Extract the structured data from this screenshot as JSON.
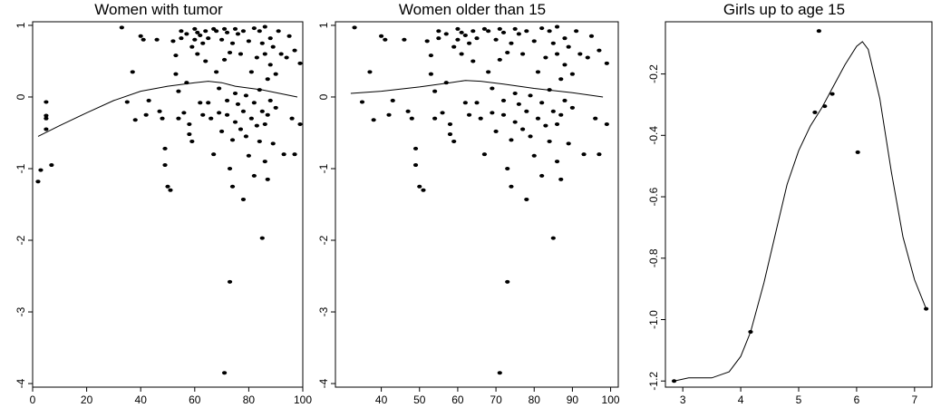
{
  "chart_data": [
    {
      "type": "scatter",
      "title": "Women with tumor",
      "xlabel": "",
      "ylabel": "",
      "xlim": [
        0,
        100
      ],
      "ylim": [
        -4,
        1
      ],
      "x_ticks": [
        0,
        20,
        40,
        60,
        80,
        100
      ],
      "y_ticks": [
        1,
        0,
        -1,
        -2,
        -3,
        -4
      ],
      "grid": false,
      "points": [
        [
          2,
          -1.18
        ],
        [
          3,
          -1.02
        ],
        [
          5,
          -0.07
        ],
        [
          5,
          -0.26
        ],
        [
          5,
          -0.3
        ],
        [
          5,
          -0.45
        ],
        [
          7,
          -0.95
        ],
        [
          33,
          0.97
        ],
        [
          35,
          -0.07
        ],
        [
          37,
          0.35
        ],
        [
          38,
          -0.32
        ],
        [
          40,
          0.85
        ],
        [
          41,
          0.8
        ],
        [
          42,
          -0.25
        ],
        [
          43,
          -0.05
        ],
        [
          46,
          0.8
        ],
        [
          47,
          -0.2
        ],
        [
          48,
          -0.3
        ],
        [
          49,
          -0.95
        ],
        [
          49,
          -0.72
        ],
        [
          50,
          -1.25
        ],
        [
          51,
          -1.3
        ],
        [
          52,
          0.78
        ],
        [
          53,
          0.58
        ],
        [
          53,
          0.32
        ],
        [
          54,
          0.08
        ],
        [
          54,
          -0.3
        ],
        [
          55,
          0.82
        ],
        [
          55,
          0.92
        ],
        [
          56,
          -0.22
        ],
        [
          57,
          0.88
        ],
        [
          57,
          0.2
        ],
        [
          58,
          -0.38
        ],
        [
          58,
          -0.52
        ],
        [
          59,
          0.7
        ],
        [
          59,
          -0.62
        ],
        [
          60,
          0.95
        ],
        [
          60,
          0.8
        ],
        [
          61,
          0.9
        ],
        [
          61,
          0.6
        ],
        [
          62,
          0.86
        ],
        [
          62,
          -0.08
        ],
        [
          63,
          0.75
        ],
        [
          63,
          -0.25
        ],
        [
          64,
          0.92
        ],
        [
          64,
          0.5
        ],
        [
          65,
          0.82
        ],
        [
          65,
          -0.08
        ],
        [
          66,
          -0.3
        ],
        [
          67,
          0.95
        ],
        [
          67,
          -0.8
        ],
        [
          68,
          0.92
        ],
        [
          68,
          0.35
        ],
        [
          69,
          0.12
        ],
        [
          69,
          -0.22
        ],
        [
          70,
          0.8
        ],
        [
          70,
          -0.48
        ],
        [
          71,
          0.52
        ],
        [
          71,
          -3.85
        ],
        [
          71,
          0.95
        ],
        [
          72,
          0.9
        ],
        [
          72,
          -0.05
        ],
        [
          72,
          -0.25
        ],
        [
          73,
          0.62
        ],
        [
          73,
          -2.58
        ],
        [
          73,
          -1.0
        ],
        [
          74,
          0.75
        ],
        [
          74,
          -0.6
        ],
        [
          74,
          -1.25
        ],
        [
          75,
          0.95
        ],
        [
          75,
          0.05
        ],
        [
          75,
          -0.35
        ],
        [
          76,
          0.88
        ],
        [
          76,
          -0.1
        ],
        [
          77,
          0.6
        ],
        [
          77,
          -0.45
        ],
        [
          78,
          0.92
        ],
        [
          78,
          -0.2
        ],
        [
          78,
          -1.43
        ],
        [
          79,
          0.02
        ],
        [
          79,
          -0.55
        ],
        [
          80,
          0.78
        ],
        [
          80,
          -0.82
        ],
        [
          81,
          0.35
        ],
        [
          81,
          -0.3
        ],
        [
          82,
          0.96
        ],
        [
          82,
          -0.08
        ],
        [
          82,
          -1.1
        ],
        [
          83,
          0.55
        ],
        [
          83,
          -0.4
        ],
        [
          84,
          0.92
        ],
        [
          84,
          0.1
        ],
        [
          84,
          -0.62
        ],
        [
          85,
          0.75
        ],
        [
          85,
          -0.2
        ],
        [
          85,
          -1.97
        ],
        [
          86,
          0.98
        ],
        [
          86,
          0.6
        ],
        [
          86,
          -0.38
        ],
        [
          86,
          -0.9
        ],
        [
          87,
          0.25
        ],
        [
          87,
          -0.25
        ],
        [
          87,
          -1.15
        ],
        [
          88,
          0.82
        ],
        [
          88,
          0.45
        ],
        [
          88,
          -0.05
        ],
        [
          89,
          0.7
        ],
        [
          89,
          -0.65
        ],
        [
          90,
          0.32
        ],
        [
          90,
          -0.15
        ],
        [
          91,
          0.92
        ],
        [
          92,
          0.6
        ],
        [
          93,
          -0.8
        ],
        [
          94,
          0.55
        ],
        [
          95,
          0.85
        ],
        [
          96,
          -0.3
        ],
        [
          97,
          0.65
        ],
        [
          97,
          -0.8
        ],
        [
          99,
          0.47
        ],
        [
          99,
          -0.38
        ]
      ],
      "curve": [
        [
          2,
          -0.55
        ],
        [
          10,
          -0.4
        ],
        [
          20,
          -0.22
        ],
        [
          30,
          -0.05
        ],
        [
          40,
          0.08
        ],
        [
          50,
          0.15
        ],
        [
          60,
          0.2
        ],
        [
          65,
          0.22
        ],
        [
          70,
          0.2
        ],
        [
          75,
          0.15
        ],
        [
          85,
          0.1
        ],
        [
          98,
          0.0
        ]
      ]
    },
    {
      "type": "scatter",
      "title": "Women older than 15",
      "xlabel": "",
      "ylabel": "",
      "xlim": [
        30,
        100
      ],
      "ylim": [
        -4,
        1
      ],
      "x_ticks": [
        40,
        50,
        60,
        70,
        80,
        90,
        100
      ],
      "y_ticks": [
        1,
        0,
        -1,
        -2,
        -3,
        -4
      ],
      "grid": false,
      "points": [
        [
          33,
          0.97
        ],
        [
          35,
          -0.07
        ],
        [
          37,
          0.35
        ],
        [
          38,
          -0.32
        ],
        [
          40,
          0.85
        ],
        [
          41,
          0.8
        ],
        [
          42,
          -0.25
        ],
        [
          43,
          -0.05
        ],
        [
          46,
          0.8
        ],
        [
          47,
          -0.2
        ],
        [
          48,
          -0.3
        ],
        [
          49,
          -0.95
        ],
        [
          49,
          -0.72
        ],
        [
          50,
          -1.25
        ],
        [
          51,
          -1.3
        ],
        [
          52,
          0.78
        ],
        [
          53,
          0.58
        ],
        [
          53,
          0.32
        ],
        [
          54,
          0.08
        ],
        [
          54,
          -0.3
        ],
        [
          55,
          0.82
        ],
        [
          55,
          0.92
        ],
        [
          56,
          -0.22
        ],
        [
          57,
          0.88
        ],
        [
          57,
          0.2
        ],
        [
          58,
          -0.38
        ],
        [
          58,
          -0.52
        ],
        [
          59,
          0.7
        ],
        [
          59,
          -0.62
        ],
        [
          60,
          0.95
        ],
        [
          60,
          0.8
        ],
        [
          61,
          0.9
        ],
        [
          61,
          0.6
        ],
        [
          62,
          0.86
        ],
        [
          62,
          -0.08
        ],
        [
          63,
          0.75
        ],
        [
          63,
          -0.25
        ],
        [
          64,
          0.92
        ],
        [
          64,
          0.5
        ],
        [
          65,
          0.82
        ],
        [
          65,
          -0.08
        ],
        [
          66,
          -0.3
        ],
        [
          67,
          0.95
        ],
        [
          67,
          -0.8
        ],
        [
          68,
          0.92
        ],
        [
          68,
          0.35
        ],
        [
          69,
          0.12
        ],
        [
          69,
          -0.22
        ],
        [
          70,
          0.8
        ],
        [
          70,
          -0.48
        ],
        [
          71,
          0.52
        ],
        [
          71,
          -3.85
        ],
        [
          71,
          0.95
        ],
        [
          72,
          0.9
        ],
        [
          72,
          -0.05
        ],
        [
          72,
          -0.25
        ],
        [
          73,
          0.62
        ],
        [
          73,
          -2.58
        ],
        [
          73,
          -1.0
        ],
        [
          74,
          0.75
        ],
        [
          74,
          -0.6
        ],
        [
          74,
          -1.25
        ],
        [
          75,
          0.95
        ],
        [
          75,
          0.05
        ],
        [
          75,
          -0.35
        ],
        [
          76,
          0.88
        ],
        [
          76,
          -0.1
        ],
        [
          77,
          0.6
        ],
        [
          77,
          -0.45
        ],
        [
          78,
          0.92
        ],
        [
          78,
          -0.2
        ],
        [
          78,
          -1.43
        ],
        [
          79,
          0.02
        ],
        [
          79,
          -0.55
        ],
        [
          80,
          0.78
        ],
        [
          80,
          -0.82
        ],
        [
          81,
          0.35
        ],
        [
          81,
          -0.3
        ],
        [
          82,
          0.96
        ],
        [
          82,
          -0.08
        ],
        [
          82,
          -1.1
        ],
        [
          83,
          0.55
        ],
        [
          83,
          -0.4
        ],
        [
          84,
          0.92
        ],
        [
          84,
          0.1
        ],
        [
          84,
          -0.62
        ],
        [
          85,
          0.75
        ],
        [
          85,
          -0.2
        ],
        [
          85,
          -1.97
        ],
        [
          86,
          0.98
        ],
        [
          86,
          0.6
        ],
        [
          86,
          -0.38
        ],
        [
          86,
          -0.9
        ],
        [
          87,
          0.25
        ],
        [
          87,
          -0.25
        ],
        [
          87,
          -1.15
        ],
        [
          88,
          0.82
        ],
        [
          88,
          0.45
        ],
        [
          88,
          -0.05
        ],
        [
          89,
          0.7
        ],
        [
          89,
          -0.65
        ],
        [
          90,
          0.32
        ],
        [
          90,
          -0.15
        ],
        [
          91,
          0.92
        ],
        [
          92,
          0.6
        ],
        [
          93,
          -0.8
        ],
        [
          94,
          0.55
        ],
        [
          95,
          0.85
        ],
        [
          96,
          -0.3
        ],
        [
          97,
          0.65
        ],
        [
          97,
          -0.8
        ],
        [
          99,
          0.47
        ],
        [
          99,
          -0.38
        ]
      ],
      "curve": [
        [
          32,
          0.05
        ],
        [
          40,
          0.08
        ],
        [
          50,
          0.14
        ],
        [
          58,
          0.2
        ],
        [
          62,
          0.23
        ],
        [
          66,
          0.22
        ],
        [
          72,
          0.18
        ],
        [
          80,
          0.12
        ],
        [
          90,
          0.06
        ],
        [
          98,
          0.0
        ]
      ]
    },
    {
      "type": "scatter",
      "title": "Girls up to age 15",
      "xlabel": "",
      "ylabel": "",
      "xlim": [
        2.7,
        7.3
      ],
      "ylim": [
        -1.22,
        -0.03
      ],
      "x_ticks": [
        3,
        4,
        5,
        6,
        7
      ],
      "y_ticks": [
        -0.2,
        -0.4,
        -0.6,
        -0.8,
        -1.0,
        -1.2
      ],
      "grid": false,
      "points": [
        [
          2.85,
          -1.2
        ],
        [
          4.17,
          -1.04
        ],
        [
          5.28,
          -0.325
        ],
        [
          5.35,
          -0.06
        ],
        [
          5.45,
          -0.305
        ],
        [
          5.58,
          -0.265
        ],
        [
          6.02,
          -0.455
        ],
        [
          7.2,
          -0.965
        ]
      ],
      "curve": [
        [
          2.85,
          -1.2
        ],
        [
          3.1,
          -1.19
        ],
        [
          3.5,
          -1.19
        ],
        [
          3.8,
          -1.17
        ],
        [
          4.0,
          -1.12
        ],
        [
          4.17,
          -1.04
        ],
        [
          4.4,
          -0.88
        ],
        [
          4.6,
          -0.72
        ],
        [
          4.8,
          -0.56
        ],
        [
          5.0,
          -0.45
        ],
        [
          5.2,
          -0.37
        ],
        [
          5.4,
          -0.31
        ],
        [
          5.6,
          -0.24
        ],
        [
          5.8,
          -0.17
        ],
        [
          6.0,
          -0.11
        ],
        [
          6.1,
          -0.095
        ],
        [
          6.2,
          -0.12
        ],
        [
          6.4,
          -0.28
        ],
        [
          6.6,
          -0.52
        ],
        [
          6.8,
          -0.73
        ],
        [
          7.0,
          -0.87
        ],
        [
          7.2,
          -0.965
        ]
      ]
    }
  ]
}
